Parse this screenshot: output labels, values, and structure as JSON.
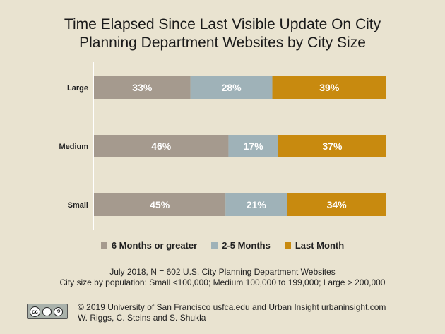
{
  "chart_data": {
    "type": "bar",
    "orientation": "horizontal",
    "stacked": true,
    "title_lines": [
      "Time Elapsed Since Last Visible Update On City",
      "Planning Department Websites by City Size"
    ],
    "categories": [
      "Large",
      "Medium",
      "Small"
    ],
    "series": [
      {
        "name": "6 Months or greater",
        "values": [
          33,
          46,
          45
        ],
        "labels": [
          "33%",
          "46%",
          "45%"
        ],
        "color": "#a59a8e"
      },
      {
        "name": "2-5 Months",
        "values": [
          28,
          17,
          21
        ],
        "labels": [
          "28%",
          "17%",
          "21%"
        ],
        "color": "#9fb2b8"
      },
      {
        "name": "Last Month",
        "values": [
          39,
          37,
          34
        ],
        "labels": [
          "39%",
          "37%",
          "34%"
        ],
        "color": "#c88a0f"
      }
    ],
    "xlim": [
      0,
      100
    ],
    "grid": false,
    "legend": "bottom"
  },
  "notes": [
    "July 2018, N = 602 U.S. City Planning Department Websites",
    "City size by population:  Small <100,000; Medium 100,000 to 199,000; Large > 200,000"
  ],
  "footer": {
    "license_icon": "creative-commons-by-sa-icon",
    "license_glyphs": [
      "cc",
      "i",
      "⟲"
    ],
    "lines": [
      "© 2019 University of San Francisco usfca.edu and Urban Insight urbaninsight.com",
      "W. Riggs, C. Steins and S. Shukla"
    ]
  }
}
